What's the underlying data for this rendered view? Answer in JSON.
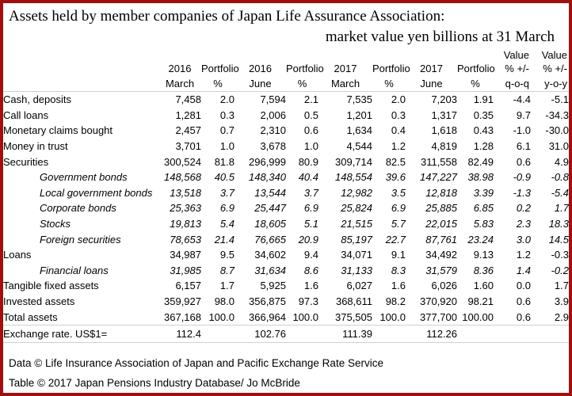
{
  "title": {
    "line1": "Assets held by member companies of Japan Life Assurance Association:",
    "line2": "market value yen billions at 31 March"
  },
  "colors": {
    "border": "#a01010",
    "gridline": "#d0d0d0",
    "text": "#000000"
  },
  "table": {
    "header": {
      "row1": [
        "",
        "",
        "",
        "",
        "",
        "",
        "",
        "",
        "Value",
        "Value"
      ],
      "row2": [
        "2016",
        "Portfolio",
        "2016",
        "Portfolio",
        "2017",
        "Portfolio",
        "2017",
        "Portfolio",
        "% +/-",
        "% +/-"
      ],
      "row3": [
        "March",
        "%",
        "June",
        "%",
        "March",
        "%",
        "June",
        "%",
        "q-o-q",
        "y-o-y"
      ]
    },
    "rows": [
      {
        "label": "Cash, deposits",
        "indent": false,
        "italic": false,
        "values": [
          "7,458",
          "2.0",
          "7,594",
          "2.1",
          "7,535",
          "2.0",
          "7,203",
          "1.91",
          "-4.4",
          "-5.1"
        ]
      },
      {
        "label": "Call loans",
        "indent": false,
        "italic": false,
        "values": [
          "1,281",
          "0.3",
          "2,006",
          "0.5",
          "1,201",
          "0.3",
          "1,317",
          "0.35",
          "9.7",
          "-34.3"
        ]
      },
      {
        "label": "Monetary claims bought",
        "indent": false,
        "italic": false,
        "values": [
          "2,457",
          "0.7",
          "2,310",
          "0.6",
          "1,634",
          "0.4",
          "1,618",
          "0.43",
          "-1.0",
          "-30.0"
        ]
      },
      {
        "label": "Money in trust",
        "indent": false,
        "italic": false,
        "values": [
          "3,701",
          "1.0",
          "3,678",
          "1.0",
          "4,544",
          "1.2",
          "4,819",
          "1.28",
          "6.1",
          "31.0"
        ]
      },
      {
        "label": "Securities",
        "indent": false,
        "italic": false,
        "values": [
          "300,524",
          "81.8",
          "296,999",
          "80.9",
          "309,714",
          "82.5",
          "311,558",
          "82.49",
          "0.6",
          "4.9"
        ]
      },
      {
        "label": "Government bonds",
        "indent": true,
        "italic": true,
        "values": [
          "148,568",
          "40.5",
          "148,340",
          "40.4",
          "148,554",
          "39.6",
          "147,227",
          "38.98",
          "-0.9",
          "-0.8"
        ]
      },
      {
        "label": "Local government bonds",
        "indent": true,
        "italic": true,
        "values": [
          "13,518",
          "3.7",
          "13,544",
          "3.7",
          "12,982",
          "3.5",
          "12,818",
          "3.39",
          "-1.3",
          "-5.4"
        ]
      },
      {
        "label": "Corporate bonds",
        "indent": true,
        "italic": true,
        "values": [
          "25,363",
          "6.9",
          "25,447",
          "6.9",
          "25,824",
          "6.9",
          "25,885",
          "6.85",
          "0.2",
          "1.7"
        ]
      },
      {
        "label": "Stocks",
        "indent": true,
        "italic": true,
        "values": [
          "19,813",
          "5.4",
          "18,605",
          "5.1",
          "21,515",
          "5.7",
          "22,015",
          "5.83",
          "2.3",
          "18.3"
        ]
      },
      {
        "label": "Foreign securities",
        "indent": true,
        "italic": true,
        "values": [
          "78,653",
          "21.4",
          "76,665",
          "20.9",
          "85,197",
          "22.7",
          "87,761",
          "23.24",
          "3.0",
          "14.5"
        ]
      },
      {
        "label": "Loans",
        "indent": false,
        "italic": false,
        "values": [
          "34,987",
          "9.5",
          "34,602",
          "9.4",
          "34,071",
          "9.1",
          "34,492",
          "9.13",
          "1.2",
          "-0.3"
        ]
      },
      {
        "label": "Financial loans",
        "indent": true,
        "italic": true,
        "values": [
          "31,985",
          "8.7",
          "31,634",
          "8.6",
          "31,133",
          "8.3",
          "31,579",
          "8.36",
          "1.4",
          "-0.2"
        ]
      },
      {
        "label": "Tangible fixed assets",
        "indent": false,
        "italic": false,
        "values": [
          "6,157",
          "1.7",
          "5,925",
          "1.6",
          "6,027",
          "1.6",
          "6,026",
          "1.60",
          "0.0",
          "1.7"
        ]
      },
      {
        "label": "Invested assets",
        "indent": false,
        "italic": false,
        "values": [
          "359,927",
          "98.0",
          "356,875",
          "97.3",
          "368,611",
          "98.2",
          "370,920",
          "98.21",
          "0.6",
          "3.9"
        ]
      },
      {
        "label": "Total assets",
        "indent": false,
        "italic": false,
        "values": [
          "367,168",
          "100.0",
          "366,964",
          "100.0",
          "375,505",
          "100.0",
          "377,700",
          "100.00",
          "0.6",
          "2.9"
        ]
      }
    ],
    "exchange_row": {
      "label": "Exchange rate. US$1=",
      "values": [
        "112.4",
        "",
        "102.76",
        "",
        "111.39",
        "",
        "112.26",
        "",
        "",
        ""
      ]
    }
  },
  "footer": {
    "line1": "Data © Life Insurance Association of Japan and Pacific Exchange Rate Service",
    "line2": "Table © 2017 Japan Pensions Industry Database/ Jo McBride"
  }
}
